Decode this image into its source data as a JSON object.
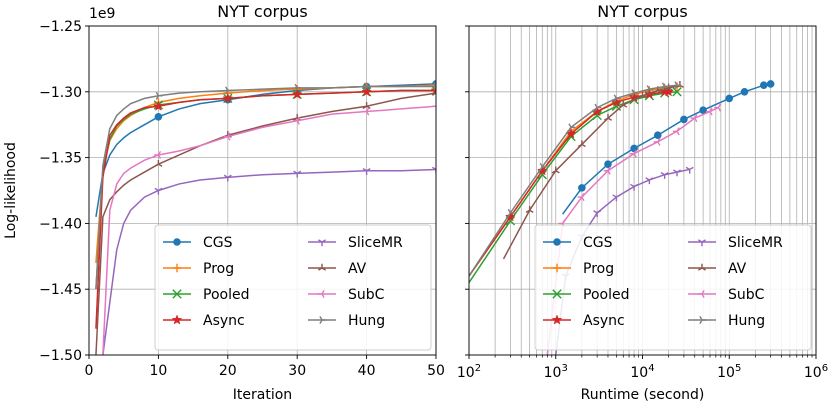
{
  "colors": {
    "CGS": "#1f77b4",
    "Prog": "#ff7f0e",
    "Pooled": "#2ca02c",
    "Async": "#d62728",
    "SliceMR": "#9467bd",
    "AV": "#8c564b",
    "SubC": "#e377c2",
    "Hung": "#7f7f7f"
  },
  "chart_data": [
    {
      "type": "line",
      "title": "NYT corpus",
      "xlabel": "Iteration",
      "ylabel": "Log-likelihood",
      "y_multiplier": "1e9",
      "xlim": [
        0,
        50
      ],
      "ylim": [
        -1.5,
        -1.25
      ],
      "xticks": [
        0,
        10,
        20,
        30,
        40,
        50
      ],
      "xtick_labels": [
        "0",
        "10",
        "20",
        "30",
        "40",
        "50"
      ],
      "yticks": [
        -1.5,
        -1.45,
        -1.4,
        -1.35,
        -1.3,
        -1.25
      ],
      "ytick_labels": [
        "−1.50",
        "−1.45",
        "−1.40",
        "−1.35",
        "−1.30",
        "−1.25"
      ],
      "grid": true,
      "legend_loc": "lower right",
      "series": [
        {
          "name": "CGS",
          "x": [
            1,
            2,
            3,
            4,
            5,
            6,
            8,
            10,
            13,
            16,
            20,
            25,
            30,
            35,
            40,
            45,
            50
          ],
          "y": [
            -1.395,
            -1.362,
            -1.348,
            -1.34,
            -1.335,
            -1.331,
            -1.325,
            -1.319,
            -1.313,
            -1.309,
            -1.306,
            -1.302,
            -1.299,
            -1.297,
            -1.296,
            -1.295,
            -1.294
          ],
          "marker": "o"
        },
        {
          "name": "Prog",
          "x": [
            1,
            2,
            3,
            4,
            5,
            6,
            8,
            10,
            13,
            16,
            20,
            25,
            30,
            35,
            40,
            45,
            50
          ],
          "y": [
            -1.43,
            -1.36,
            -1.337,
            -1.328,
            -1.322,
            -1.318,
            -1.312,
            -1.308,
            -1.305,
            -1.303,
            -1.301,
            -1.299,
            -1.298,
            -1.297,
            -1.296,
            -1.296,
            -1.295
          ],
          "marker": "+"
        },
        {
          "name": "Pooled",
          "x": [
            1,
            2,
            3,
            4,
            5,
            6,
            8,
            10,
            13,
            16,
            20,
            25,
            30,
            35,
            40,
            45,
            50
          ],
          "y": [
            -1.45,
            -1.36,
            -1.336,
            -1.326,
            -1.321,
            -1.317,
            -1.313,
            -1.31,
            -1.308,
            -1.306,
            -1.305,
            -1.303,
            -1.302,
            -1.301,
            -1.3,
            -1.299,
            -1.299
          ],
          "marker": "x"
        },
        {
          "name": "Async",
          "x": [
            1,
            2,
            3,
            4,
            5,
            6,
            8,
            10,
            13,
            16,
            20,
            25,
            30,
            35,
            40,
            45,
            50
          ],
          "y": [
            -1.48,
            -1.365,
            -1.333,
            -1.325,
            -1.32,
            -1.316,
            -1.312,
            -1.311,
            -1.308,
            -1.306,
            -1.305,
            -1.303,
            -1.302,
            -1.301,
            -1.3,
            -1.299,
            -1.299
          ],
          "marker": "*"
        },
        {
          "name": "SliceMR",
          "x": [
            2,
            3,
            4,
            5,
            6,
            8,
            10,
            13,
            16,
            20,
            25,
            30,
            35,
            40,
            45,
            50
          ],
          "y": [
            -1.5,
            -1.46,
            -1.42,
            -1.4,
            -1.39,
            -1.38,
            -1.375,
            -1.37,
            -1.367,
            -1.365,
            -1.363,
            -1.362,
            -1.361,
            -1.36,
            -1.36,
            -1.359
          ],
          "marker": "1"
        },
        {
          "name": "AV",
          "x": [
            1,
            2,
            3,
            4,
            5,
            6,
            8,
            10,
            13,
            16,
            20,
            25,
            30,
            35,
            40,
            45,
            50
          ],
          "y": [
            -1.5,
            -1.395,
            -1.382,
            -1.376,
            -1.371,
            -1.367,
            -1.361,
            -1.355,
            -1.348,
            -1.341,
            -1.333,
            -1.326,
            -1.32,
            -1.315,
            -1.311,
            -1.305,
            -1.301
          ],
          "marker": "2"
        },
        {
          "name": "SubC",
          "x": [
            2,
            3,
            4,
            5,
            6,
            8,
            10,
            13,
            16,
            20,
            25,
            30,
            35,
            40,
            45,
            50
          ],
          "y": [
            -1.5,
            -1.39,
            -1.37,
            -1.362,
            -1.358,
            -1.352,
            -1.348,
            -1.345,
            -1.341,
            -1.334,
            -1.327,
            -1.322,
            -1.317,
            -1.315,
            -1.313,
            -1.311
          ],
          "marker": "3"
        },
        {
          "name": "Hung",
          "x": [
            1,
            2,
            3,
            4,
            5,
            6,
            8,
            10,
            13,
            16,
            20,
            25,
            30,
            35,
            40,
            45,
            50
          ],
          "y": [
            -1.45,
            -1.356,
            -1.328,
            -1.318,
            -1.313,
            -1.309,
            -1.305,
            -1.303,
            -1.301,
            -1.3,
            -1.299,
            -1.298,
            -1.297,
            -1.297,
            -1.296,
            -1.296,
            -1.296
          ],
          "marker": "4"
        }
      ]
    },
    {
      "type": "line",
      "title": "NYT corpus",
      "xlabel": "Runtime (second)",
      "ylabel": "",
      "xscale": "log",
      "xlim": [
        100,
        1000000
      ],
      "ylim": [
        -1.5,
        -1.25
      ],
      "xticks": [
        100,
        1000,
        10000,
        100000,
        1000000
      ],
      "xtick_labels": [
        "10^2",
        "10^3",
        "10^4",
        "10^5",
        "10^6"
      ],
      "grid": true,
      "legend_loc": "lower right",
      "series": [
        {
          "name": "CGS",
          "x": [
            1200,
            2000,
            4000,
            8000,
            15000,
            30000,
            50000,
            100000,
            150000,
            250000,
            300000
          ],
          "y": [
            -1.393,
            -1.373,
            -1.355,
            -1.343,
            -1.333,
            -1.321,
            -1.314,
            -1.305,
            -1.3,
            -1.295,
            -1.294
          ],
          "marker": "o"
        },
        {
          "name": "Prog",
          "x": [
            100,
            300,
            700,
            1500,
            3000,
            5000,
            8000,
            12000,
            18000,
            25000
          ],
          "y": [
            -1.44,
            -1.395,
            -1.36,
            -1.33,
            -1.315,
            -1.307,
            -1.302,
            -1.299,
            -1.297,
            -1.296
          ],
          "marker": "+"
        },
        {
          "name": "Pooled",
          "x": [
            100,
            300,
            700,
            1500,
            3000,
            5000,
            8000,
            12000,
            18000,
            25000
          ],
          "y": [
            -1.445,
            -1.398,
            -1.363,
            -1.334,
            -1.318,
            -1.311,
            -1.306,
            -1.303,
            -1.301,
            -1.3
          ],
          "marker": "x"
        },
        {
          "name": "Async",
          "x": [
            100,
            300,
            700,
            1500,
            3000,
            5000,
            8000,
            12000,
            18000,
            20000
          ],
          "y": [
            -1.44,
            -1.395,
            -1.36,
            -1.332,
            -1.315,
            -1.308,
            -1.304,
            -1.302,
            -1.3,
            -1.3
          ],
          "marker": "*"
        },
        {
          "name": "SliceMR",
          "x": [
            1000,
            1300,
            2000,
            3000,
            5000,
            8000,
            12000,
            18000,
            25000,
            35000
          ],
          "y": [
            -1.5,
            -1.44,
            -1.41,
            -1.392,
            -1.38,
            -1.372,
            -1.367,
            -1.363,
            -1.361,
            -1.359
          ],
          "marker": "1"
        },
        {
          "name": "AV",
          "x": [
            250,
            500,
            1000,
            2000,
            4000,
            6000,
            10000,
            15000,
            20000,
            27000
          ],
          "y": [
            -1.427,
            -1.39,
            -1.36,
            -1.34,
            -1.32,
            -1.31,
            -1.303,
            -1.299,
            -1.297,
            -1.295
          ],
          "marker": "2"
        },
        {
          "name": "SubC",
          "x": [
            800,
            1200,
            2000,
            4000,
            8000,
            15000,
            25000,
            40000,
            60000,
            75000
          ],
          "y": [
            -1.5,
            -1.4,
            -1.38,
            -1.36,
            -1.347,
            -1.338,
            -1.33,
            -1.32,
            -1.315,
            -1.312
          ],
          "marker": "3"
        },
        {
          "name": "Hung",
          "x": [
            100,
            300,
            700,
            1500,
            3000,
            5000,
            8000,
            12000,
            18000,
            25000
          ],
          "y": [
            -1.44,
            -1.392,
            -1.357,
            -1.327,
            -1.312,
            -1.305,
            -1.301,
            -1.298,
            -1.296,
            -1.295
          ],
          "marker": "4"
        }
      ]
    }
  ]
}
